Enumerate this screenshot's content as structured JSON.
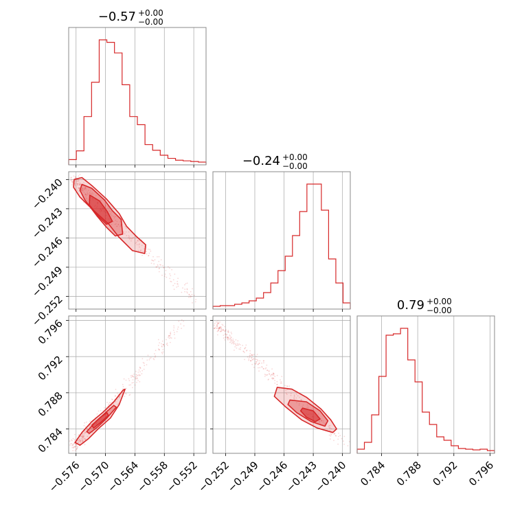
{
  "chart_data": {
    "type": "corner",
    "color": "#d62728",
    "parameters": [
      {
        "name": "p0",
        "title": {
          "median": "−0.57",
          "plus": "+0.00",
          "minus": "−0.00"
        },
        "range": [
          -0.5775,
          -0.5495
        ],
        "ticks": [
          -0.576,
          -0.57,
          -0.564,
          -0.558,
          -0.552
        ],
        "tick_labels": [
          "−0.576",
          "−0.570",
          "−0.564",
          "−0.558",
          "−0.552"
        ],
        "hist": [
          4,
          18,
          73,
          128,
          196,
          192,
          175,
          124,
          73,
          60,
          28,
          19,
          11,
          6,
          3,
          2,
          1,
          0
        ]
      },
      {
        "name": "p1",
        "title": {
          "median": "−0.24",
          "plus": "+0.00",
          "minus": "−0.00"
        },
        "range": [
          -0.2533,
          -0.2392
        ],
        "ticks": [
          -0.252,
          -0.249,
          -0.246,
          -0.243,
          -0.24
        ],
        "tick_labels": [
          "−0.252",
          "−0.249",
          "−0.246",
          "−0.243",
          "−0.240"
        ],
        "hist": [
          0,
          1,
          1,
          3,
          5,
          8,
          12,
          20,
          34,
          52,
          73,
          103,
          138,
          178,
          178,
          140,
          69,
          34,
          5
        ]
      },
      {
        "name": "p2",
        "title": {
          "median": "0.79",
          "plus": "+0.00",
          "minus": "−0.00"
        },
        "range": [
          0.7813,
          0.7965
        ],
        "ticks": [
          0.784,
          0.788,
          0.792,
          0.796
        ],
        "tick_labels": [
          "0.784",
          "0.788",
          "0.792",
          "0.796"
        ],
        "hist": [
          2,
          12,
          52,
          108,
          168,
          170,
          178,
          132,
          100,
          56,
          38,
          20,
          15,
          7,
          3,
          2,
          1,
          2,
          0
        ]
      }
    ],
    "pairs": [
      {
        "x_param": 0,
        "y_param": 1,
        "contours": [
          [
            [
              -0.5764,
              -0.24
            ],
            [
              -0.5748,
              -0.2398
            ],
            [
              -0.5726,
              -0.2407
            ],
            [
              -0.5698,
              -0.242
            ],
            [
              -0.5672,
              -0.2435
            ],
            [
              -0.5657,
              -0.2448
            ],
            [
              -0.5638,
              -0.2458
            ],
            [
              -0.5618,
              -0.2467
            ],
            [
              -0.562,
              -0.2476
            ],
            [
              -0.5645,
              -0.2473
            ],
            [
              -0.5673,
              -0.2459
            ],
            [
              -0.5693,
              -0.2446
            ],
            [
              -0.5728,
              -0.243
            ],
            [
              -0.5752,
              -0.2418
            ],
            [
              -0.5765,
              -0.2408
            ]
          ],
          [
            [
              -0.5748,
              -0.2405
            ],
            [
              -0.5728,
              -0.2409
            ],
            [
              -0.5702,
              -0.2421
            ],
            [
              -0.5686,
              -0.2432
            ],
            [
              -0.5668,
              -0.2441
            ],
            [
              -0.5665,
              -0.2456
            ],
            [
              -0.568,
              -0.2458
            ],
            [
              -0.5698,
              -0.2449
            ],
            [
              -0.5718,
              -0.2437
            ],
            [
              -0.5742,
              -0.2421
            ],
            [
              -0.5752,
              -0.2411
            ]
          ],
          [
            [
              -0.5732,
              -0.2416
            ],
            [
              -0.5712,
              -0.2422
            ],
            [
              -0.5696,
              -0.2433
            ],
            [
              -0.5686,
              -0.2443
            ],
            [
              -0.5698,
              -0.2446
            ],
            [
              -0.5716,
              -0.2437
            ],
            [
              -0.5733,
              -0.2426
            ]
          ]
        ],
        "scatter_trend": {
          "x": [
            -0.5765,
            -0.552
          ],
          "y": [
            -0.24,
            -0.2523
          ]
        }
      },
      {
        "x_param": 0,
        "y_param": 2,
        "contours": [
          [
            [
              -0.5762,
              0.7825
            ],
            [
              -0.5748,
              0.7836
            ],
            [
              -0.5728,
              0.7848
            ],
            [
              -0.5706,
              0.7858
            ],
            [
              -0.5683,
              0.787
            ],
            [
              -0.5664,
              0.7883
            ],
            [
              -0.566,
              0.7884
            ],
            [
              -0.5672,
              0.7867
            ],
            [
              -0.569,
              0.7852
            ],
            [
              -0.5713,
              0.7841
            ],
            [
              -0.5735,
              0.7829
            ],
            [
              -0.5752,
              0.7822
            ]
          ],
          [
            [
              -0.5738,
              0.7837
            ],
            [
              -0.5722,
              0.7847
            ],
            [
              -0.57,
              0.7858
            ],
            [
              -0.5683,
              0.7866
            ],
            [
              -0.5678,
              0.7864
            ],
            [
              -0.5697,
              0.7852
            ],
            [
              -0.5716,
              0.7842
            ],
            [
              -0.5733,
              0.7835
            ]
          ],
          [
            [
              -0.5728,
              0.7844
            ],
            [
              -0.571,
              0.7853
            ],
            [
              -0.5697,
              0.7858
            ],
            [
              -0.5694,
              0.7855
            ],
            [
              -0.571,
              0.7847
            ],
            [
              -0.5724,
              0.7841
            ]
          ]
        ],
        "scatter_trend": {
          "x": [
            -0.5765,
            -0.554
          ],
          "y": [
            0.782,
            0.796
          ]
        }
      },
      {
        "x_param": 1,
        "y_param": 2,
        "contours": [
          [
            [
              -0.2467,
              0.7886
            ],
            [
              -0.2452,
              0.7884
            ],
            [
              -0.2437,
              0.7875
            ],
            [
              -0.2422,
              0.7862
            ],
            [
              -0.2412,
              0.785
            ],
            [
              -0.2406,
              0.784
            ],
            [
              -0.241,
              0.7836
            ],
            [
              -0.2426,
              0.7841
            ],
            [
              -0.2442,
              0.785
            ],
            [
              -0.2458,
              0.7864
            ],
            [
              -0.247,
              0.7876
            ]
          ],
          [
            [
              -0.2454,
              0.7872
            ],
            [
              -0.2437,
              0.787
            ],
            [
              -0.2423,
              0.786
            ],
            [
              -0.2415,
              0.7849
            ],
            [
              -0.2418,
              0.7843
            ],
            [
              -0.2432,
              0.7848
            ],
            [
              -0.2447,
              0.7858
            ],
            [
              -0.2456,
              0.7867
            ]
          ],
          [
            [
              -0.2441,
              0.7863
            ],
            [
              -0.243,
              0.786
            ],
            [
              -0.2423,
              0.7851
            ],
            [
              -0.2428,
              0.7848
            ],
            [
              -0.2437,
              0.7853
            ],
            [
              -0.2443,
              0.786
            ]
          ]
        ],
        "scatter_trend": {
          "x": [
            -0.253,
            -0.2395
          ],
          "y": [
            0.7955,
            0.7822
          ]
        }
      }
    ]
  }
}
